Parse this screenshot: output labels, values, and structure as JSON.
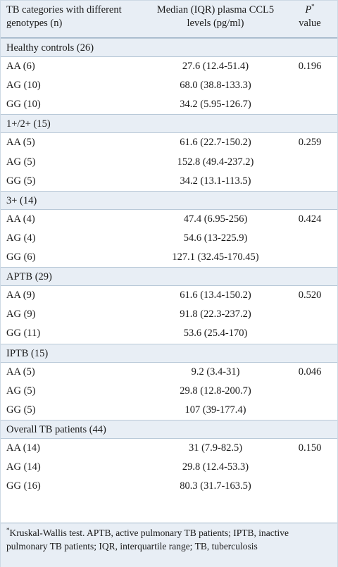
{
  "header": {
    "col1": "TB categories with different genotypes (n)",
    "col2": "Median (IQR) plasma CCL5 levels (pg/ml)",
    "col3_symbol": "P",
    "col3_sup": "*",
    "col3_rest": "value"
  },
  "groups": [
    {
      "title": "Healthy controls (26)",
      "rows": [
        {
          "genotype": "AA (6)",
          "median": "27.6 (12.4-51.4)",
          "p": "0.196"
        },
        {
          "genotype": "AG (10)",
          "median": "68.0 (38.8-133.3)",
          "p": ""
        },
        {
          "genotype": "GG (10)",
          "median": "34.2 (5.95-126.7)",
          "p": ""
        }
      ]
    },
    {
      "title": "1+/2+ (15)",
      "rows": [
        {
          "genotype": "AA (5)",
          "median": "61.6 (22.7-150.2)",
          "p": "0.259"
        },
        {
          "genotype": "AG (5)",
          "median": "152.8 (49.4-237.2)",
          "p": ""
        },
        {
          "genotype": "GG (5)",
          "median": "34.2 (13.1-113.5)",
          "p": ""
        }
      ]
    },
    {
      "title": "3+ (14)",
      "rows": [
        {
          "genotype": "AA (4)",
          "median": "47.4 (6.95-256)",
          "p": "0.424"
        },
        {
          "genotype": "AG (4)",
          "median": "54.6 (13-225.9)",
          "p": ""
        },
        {
          "genotype": "GG (6)",
          "median": "127.1 (32.45-170.45)",
          "p": ""
        }
      ]
    },
    {
      "title": "APTB (29)",
      "rows": [
        {
          "genotype": "AA (9)",
          "median": "61.6 (13.4-150.2)",
          "p": "0.520"
        },
        {
          "genotype": "AG (9)",
          "median": "91.8 (22.3-237.2)",
          "p": ""
        },
        {
          "genotype": "GG (11)",
          "median": "53.6 (25.4-170)",
          "p": ""
        }
      ]
    },
    {
      "title": "IPTB (15)",
      "rows": [
        {
          "genotype": "AA (5)",
          "median": "9.2 (3.4-31)",
          "p": "0.046"
        },
        {
          "genotype": "AG (5)",
          "median": "29.8 (12.8-200.7)",
          "p": ""
        },
        {
          "genotype": "GG (5)",
          "median": "107 (39-177.4)",
          "p": ""
        }
      ]
    },
    {
      "title": "Overall TB patients (44)",
      "rows": [
        {
          "genotype": "AA (14)",
          "median": "31 (7.9-82.5)",
          "p": "0.150"
        },
        {
          "genotype": "AG (14)",
          "median": "29.8 (12.4-53.3)",
          "p": ""
        },
        {
          "genotype": "GG (16)",
          "median": "80.3 (31.7-163.5)",
          "p": ""
        }
      ]
    }
  ],
  "footnote": {
    "sup": "*",
    "text": "Kruskal-Wallis test. APTB, active pulmonary TB patients; IPTB, inactive pulmonary TB patients; IQR, interquartile range; TB, tuberculosis"
  }
}
